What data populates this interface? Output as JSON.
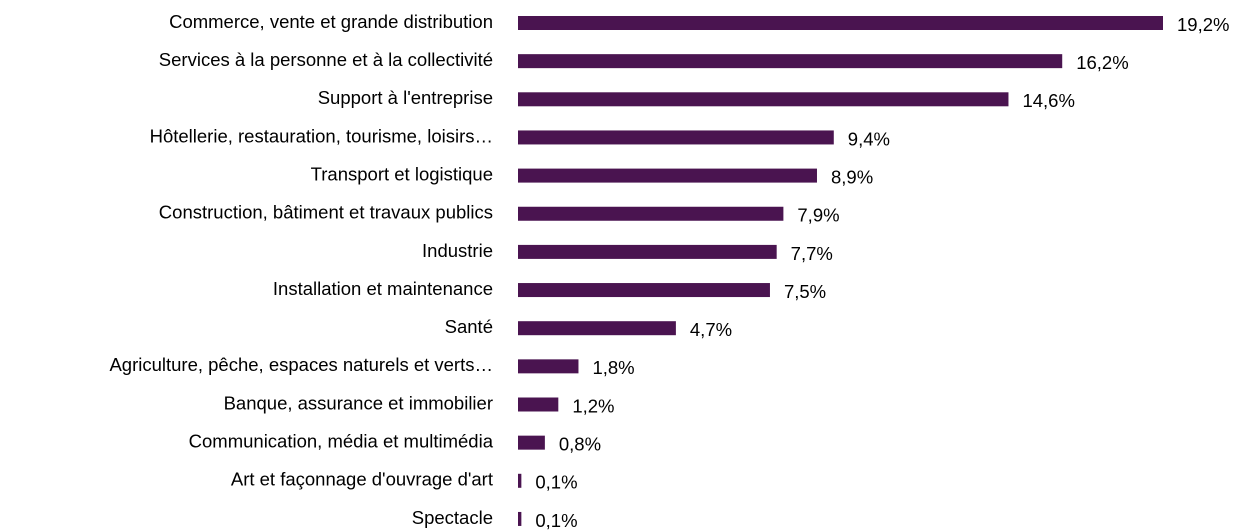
{
  "chart_data": {
    "type": "bar",
    "orientation": "horizontal",
    "color": "#4a1450",
    "categories": [
      "Commerce, vente et grande distribution",
      "Services à la personne et à la collectivité",
      "Support à l'entreprise",
      "Hôtellerie, restauration, tourisme, loisirs…",
      "Transport et logistique",
      "Construction, bâtiment et travaux publics",
      "Industrie",
      "Installation et maintenance",
      "Santé",
      "Agriculture, pêche, espaces naturels et verts…",
      "Banque, assurance et immobilier",
      "Communication, média et multimédia",
      "Art et façonnage d'ouvrage d'art",
      "Spectacle"
    ],
    "values": [
      19.2,
      16.2,
      14.6,
      9.4,
      8.9,
      7.9,
      7.7,
      7.5,
      4.7,
      1.8,
      1.2,
      0.8,
      0.1,
      0.1
    ],
    "value_labels": [
      "19,2%",
      "16,2%",
      "14,6%",
      "9,4%",
      "8,9%",
      "7,9%",
      "7,7%",
      "7,5%",
      "4,7%",
      "1,8%",
      "1,2%",
      "0,8%",
      "0,1%",
      "0,1%"
    ]
  }
}
